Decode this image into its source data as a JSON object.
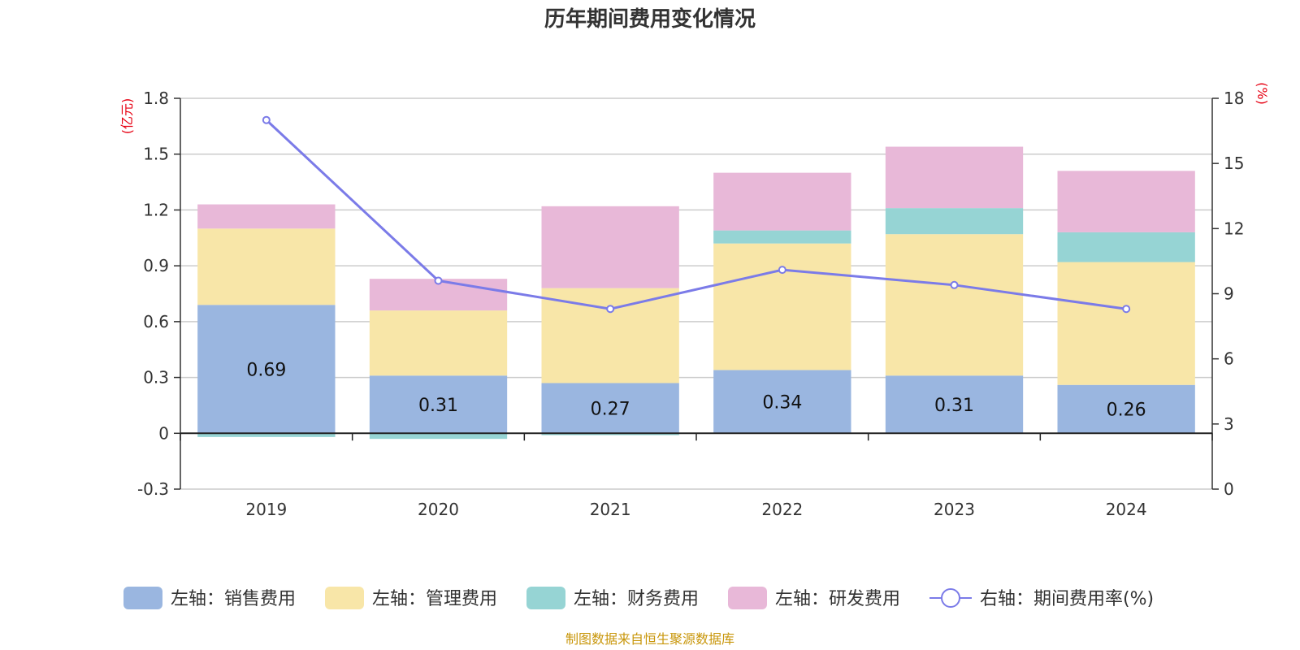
{
  "chart_data": {
    "type": "bar",
    "stacked": true,
    "title": "历年期间费用变化情况",
    "categories": [
      "2019",
      "2020",
      "2021",
      "2022",
      "2023",
      "2024"
    ],
    "y_left": {
      "unit": "(亿元)",
      "ylim": [
        -0.3,
        1.8
      ],
      "ticks": [
        -0.3,
        0,
        0.3,
        0.6,
        0.9,
        1.2,
        1.5,
        1.8
      ],
      "tick_labels": [
        "-0.3",
        "0",
        "0.3",
        "0.6",
        "0.9",
        "1.2",
        "1.5",
        "1.8"
      ]
    },
    "y_right": {
      "unit": "(%)",
      "ylim": [
        0,
        18
      ],
      "ticks": [
        0,
        3,
        6,
        9,
        12,
        15,
        18
      ],
      "tick_labels": [
        "0",
        "3",
        "6",
        "9",
        "12",
        "15",
        "18"
      ]
    },
    "series": [
      {
        "name": "左轴：销售费用",
        "type": "bar",
        "axis": "left",
        "color": "#9ab6e0",
        "values": [
          0.69,
          0.31,
          0.27,
          0.34,
          0.31,
          0.26
        ],
        "labels": [
          "0.69",
          "0.31",
          "0.27",
          "0.34",
          "0.31",
          "0.26"
        ]
      },
      {
        "name": "左轴：管理费用",
        "type": "bar",
        "axis": "left",
        "color": "#f8e6a8",
        "values": [
          0.41,
          0.35,
          0.51,
          0.68,
          0.76,
          0.66
        ]
      },
      {
        "name": "左轴：财务费用",
        "type": "bar",
        "axis": "left",
        "color": "#96d4d4",
        "values": [
          -0.02,
          -0.03,
          -0.01,
          0.07,
          0.14,
          0.16
        ]
      },
      {
        "name": "左轴：研发费用",
        "type": "bar",
        "axis": "left",
        "color": "#e8b8d8",
        "values": [
          0.13,
          0.17,
          0.44,
          0.31,
          0.33,
          0.33
        ]
      },
      {
        "name": "右轴：期间费用率(%)",
        "type": "line",
        "axis": "right",
        "color": "#7b7be8",
        "values": [
          17.0,
          9.6,
          8.3,
          10.1,
          9.4,
          8.3
        ]
      }
    ],
    "legend_position": "bottom",
    "grid": true
  },
  "footer": {
    "source": "制图数据来自恒生聚源数据库"
  }
}
